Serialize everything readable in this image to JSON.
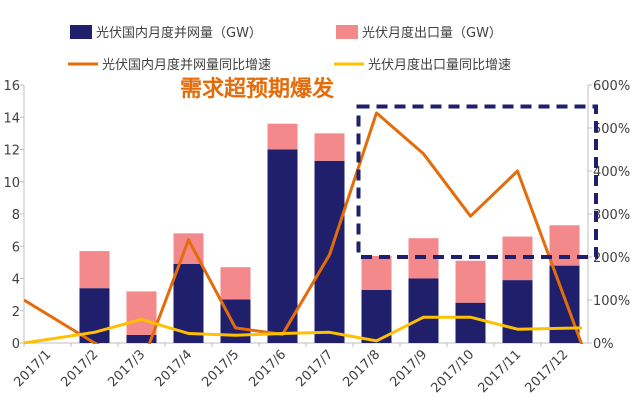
{
  "chart_data": {
    "type": "bar",
    "stacked": true,
    "categories": [
      "2017/1",
      "2017/2",
      "2017/3",
      "2017/4",
      "2017/5",
      "2017/6",
      "2017/7",
      "2017/8",
      "2017/9",
      "2017/10",
      "2017/11",
      "2017/12"
    ],
    "series": [
      {
        "name": "光伏国内月度并网量（GW）",
        "kind": "bar",
        "axis": "left",
        "color": "#1f1f6b",
        "values": [
          0,
          3.4,
          0.5,
          4.9,
          2.7,
          12.0,
          11.3,
          3.3,
          4.0,
          2.5,
          3.9,
          4.8
        ]
      },
      {
        "name": "光伏月度出口量（GW）",
        "kind": "bar",
        "axis": "left",
        "color": "#f4898c",
        "values": [
          0,
          2.3,
          2.7,
          1.9,
          2.0,
          1.6,
          1.7,
          2.1,
          2.5,
          2.6,
          2.7,
          2.5
        ]
      },
      {
        "name": "光伏国内月度并网量同比增速",
        "kind": "line",
        "axis": "right",
        "color": "#e46c0a",
        "values": [
          100,
          0,
          -50,
          240,
          35,
          20,
          205,
          535,
          440,
          295,
          400,
          -5
        ]
      },
      {
        "name": "光伏月度出口量同比增速",
        "kind": "line",
        "axis": "right",
        "color": "#ffc000",
        "values": [
          0,
          25,
          55,
          22,
          18,
          22,
          25,
          5,
          60,
          60,
          32,
          35
        ]
      }
    ],
    "left_axis": {
      "min": 0,
      "max": 16,
      "ticks": [
        "0",
        "2",
        "4",
        "6",
        "8",
        "10",
        "12",
        "14",
        "16"
      ]
    },
    "right_axis": {
      "min": 0,
      "max": 600,
      "ticks": [
        "0%",
        "100%",
        "200%",
        "300%",
        "400%",
        "500%",
        "600%"
      ]
    },
    "annotation": "需求超预期爆发",
    "highlight_box": {
      "from_category": "2017/8",
      "to_category": "2017/12",
      "y_from_percent": 200,
      "y_to_percent": 550
    },
    "title": "",
    "xlabel": "",
    "ylabel": "",
    "grid": false,
    "legend_position": "top"
  }
}
